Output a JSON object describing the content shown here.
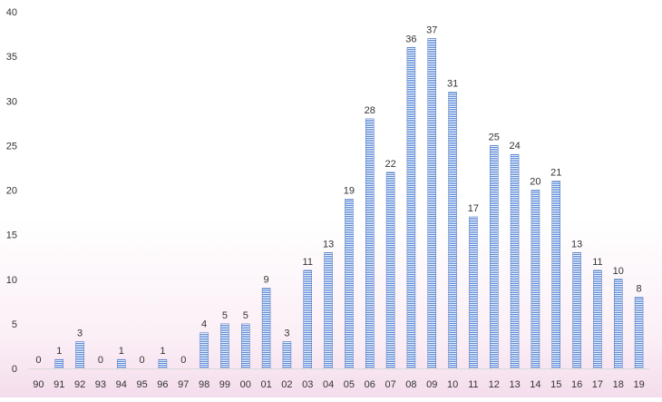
{
  "chart_data": {
    "type": "bar",
    "title": "",
    "xlabel": "",
    "ylabel": "",
    "ylim": [
      0,
      40
    ],
    "yticks": [
      0,
      5,
      10,
      15,
      20,
      25,
      30,
      35,
      40
    ],
    "grid": false,
    "legend": "none",
    "categories": [
      "90",
      "91",
      "92",
      "93",
      "94",
      "95",
      "96",
      "97",
      "98",
      "99",
      "00",
      "01",
      "02",
      "03",
      "04",
      "05",
      "06",
      "07",
      "08",
      "09",
      "10",
      "11",
      "12",
      "13",
      "14",
      "15",
      "16",
      "17",
      "18",
      "19"
    ],
    "values": [
      0,
      1,
      3,
      0,
      1,
      0,
      1,
      0,
      4,
      5,
      5,
      9,
      3,
      11,
      13,
      19,
      28,
      22,
      36,
      37,
      31,
      17,
      25,
      24,
      20,
      21,
      13,
      11,
      10,
      8
    ],
    "colors": {
      "bar_fill": "#5b8ad8",
      "bar_stripe": "#ffffff",
      "bar_edge": "#4a72bd",
      "axis": "#d9d9d9",
      "text": "#333333"
    }
  }
}
